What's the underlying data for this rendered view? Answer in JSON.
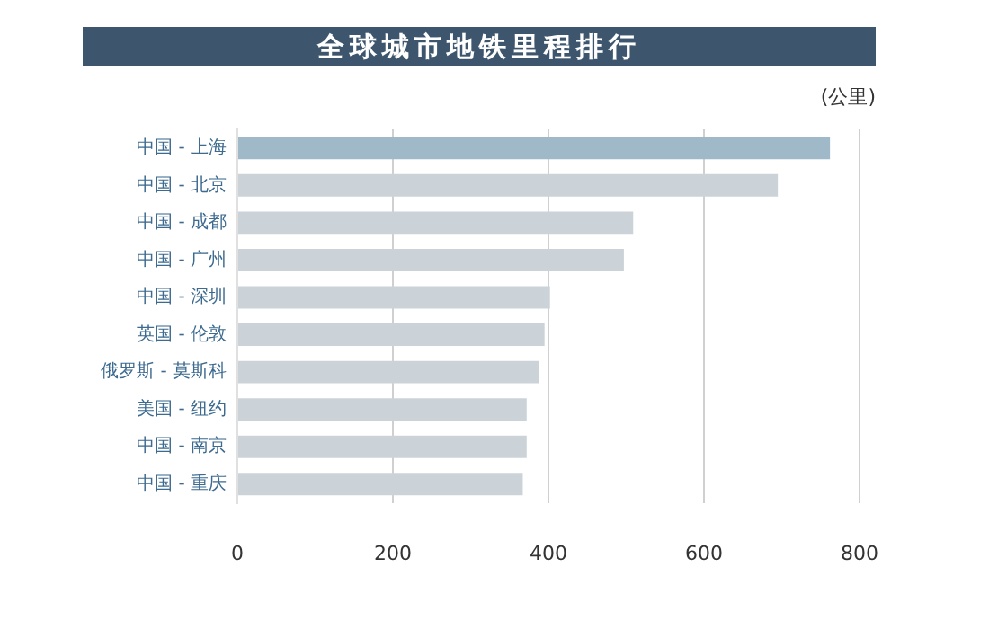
{
  "chart_data": {
    "type": "bar",
    "orientation": "horizontal",
    "title": "全球城市地铁里程排行",
    "annotations": [
      "(公里)"
    ],
    "categories": [
      "中国 - 上海",
      "中国 - 北京",
      "中国 - 成都",
      "中国 - 广州",
      "中国 - 深圳",
      "英国 - 伦敦",
      "俄罗斯 - 莫斯科",
      "美国 - 纽约",
      "中国 - 南京",
      "中国 - 重庆"
    ],
    "values": [
      762,
      695,
      509,
      497,
      402,
      395,
      388,
      372,
      372,
      367
    ],
    "colors": [
      "#9fb9c8",
      "#cbd3d9",
      "#cbd3d9",
      "#cbd3d9",
      "#cbd3d9",
      "#cbd3d9",
      "#cbd3d9",
      "#cbd3d9",
      "#cbd3d9",
      "#cbd3d9"
    ],
    "xlim": [
      0,
      800
    ],
    "xticks": [
      0,
      200,
      400,
      600,
      800
    ],
    "grid": "x",
    "legend": false
  }
}
